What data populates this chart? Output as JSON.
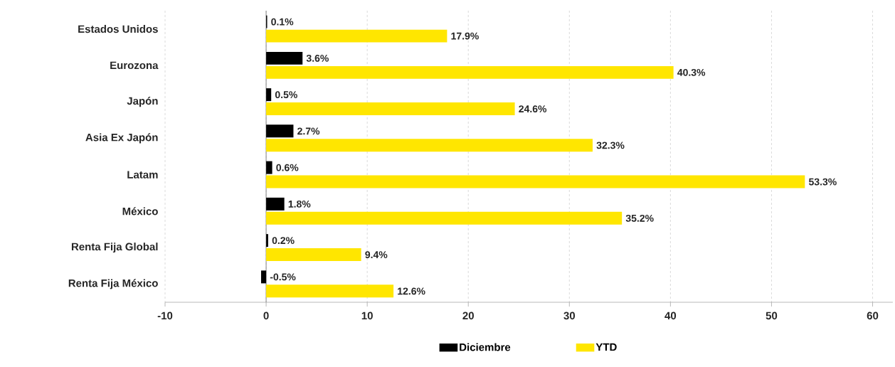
{
  "chart_data": {
    "type": "bar",
    "orientation": "horizontal",
    "categories": [
      "Estados Unidos",
      "Eurozona",
      "Japón",
      "Asia Ex Japón",
      "Latam",
      "México",
      "Renta Fija Global",
      "Renta Fija México"
    ],
    "series": [
      {
        "name": "Diciembre",
        "color": "#000000",
        "values": [
          0.1,
          3.6,
          0.5,
          2.7,
          0.6,
          1.8,
          0.2,
          -0.5
        ],
        "value_labels": [
          "0.1%",
          "3.6%",
          "0.5%",
          "2.7%",
          "0.6%",
          "1.8%",
          "0.2%",
          "-0.5%"
        ]
      },
      {
        "name": "YTD",
        "color": "#ffe600",
        "values": [
          17.9,
          40.3,
          24.6,
          32.3,
          53.3,
          35.2,
          9.4,
          12.6
        ],
        "value_labels": [
          "17.9%",
          "40.3%",
          "24.6%",
          "32.3%",
          "53.3%",
          "35.2%",
          "9.4%",
          "12.6%"
        ]
      }
    ],
    "xlim": [
      -10,
      62
    ],
    "xticks": [
      -10,
      0,
      10,
      20,
      30,
      40,
      50,
      60
    ],
    "grid": "x",
    "legend": "bottom"
  }
}
